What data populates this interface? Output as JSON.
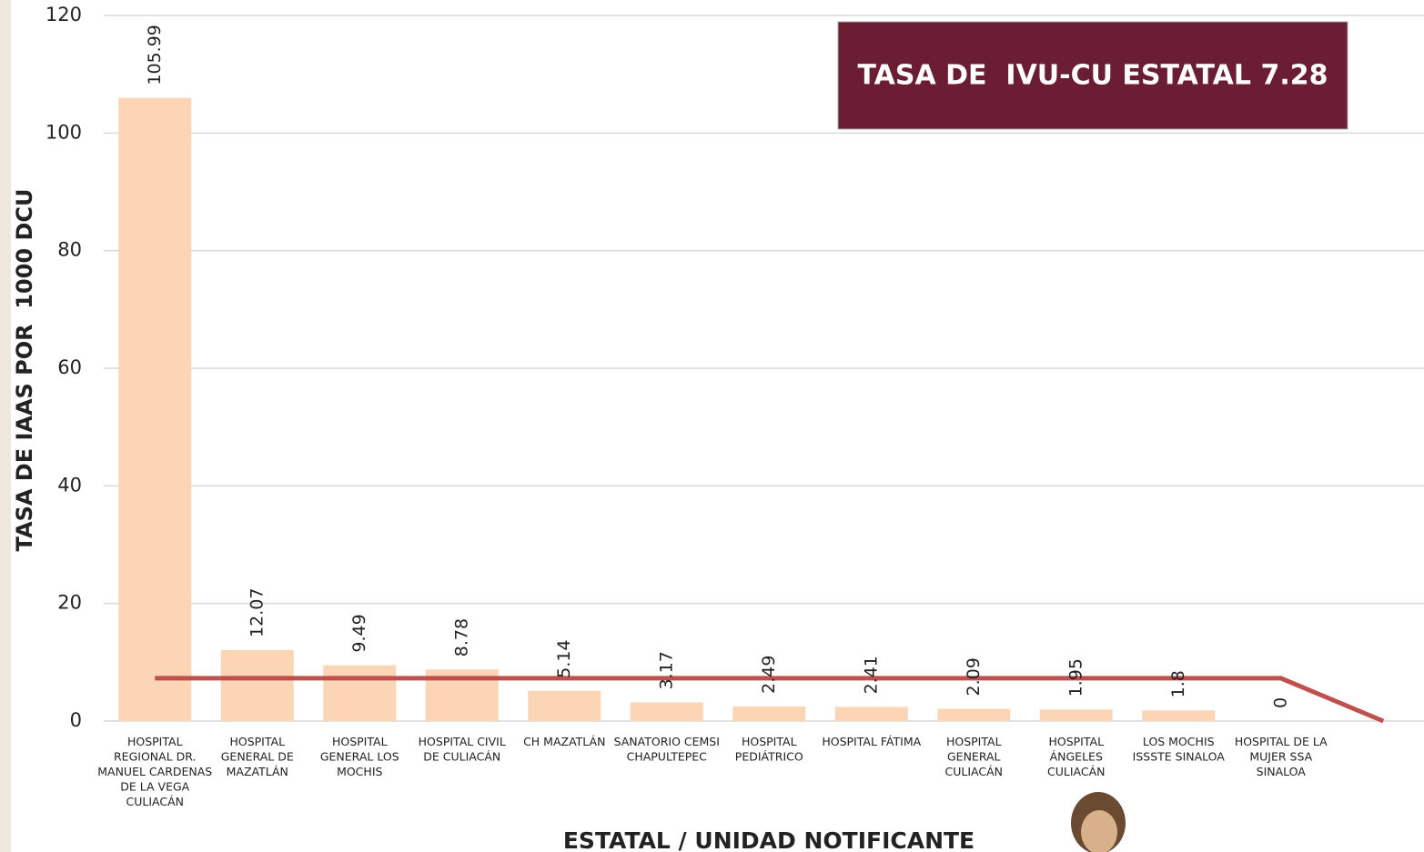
{
  "chart_data": {
    "type": "bar",
    "title": "TASA DE  IVU-CU ESTATAL 7.28",
    "x_label": "ESTATAL / UNIDAD NOTIFICANTE",
    "y_label": "TASA DE IAAS POR  1000 DCU",
    "categories": [
      "HOSPITAL REGIONAL DR. MANUEL CARDENAS DE LA VEGA CULIACÁN",
      "HOSPITAL GENERAL DE MAZATLÁN",
      "HOSPITAL GENERAL LOS MOCHIS",
      "HOSPITAL CIVIL DE CULIACÁN",
      "CH MAZATLÁN",
      "SANATORIO CEMSI CHAPULTEPEC",
      "HOSPITAL PEDIÁTRICO",
      "HOSPITAL FÁTIMA",
      "HOSPITAL GENERAL CULIACÁN",
      "HOSPITAL ÁNGELES CULIACÁN",
      "LOS MOCHIS ISSSTE SINALOA",
      "HOSPITAL DE LA MUJER SSA SINALOA",
      null
    ],
    "values": [
      105.99,
      12.07,
      9.49,
      8.78,
      5.14,
      3.17,
      2.49,
      2.41,
      2.09,
      1.95,
      1.8,
      0,
      null
    ],
    "color": "#fcd5b5",
    "line": {
      "values": [
        7.28,
        7.28,
        7.28,
        7.28,
        7.28,
        7.28,
        7.28,
        7.28,
        7.28,
        7.28,
        7.28,
        7.28,
        0
      ],
      "color": "#c0504d"
    },
    "ylim": [
      0,
      120
    ],
    "yticks": [
      0,
      20,
      40,
      60,
      80,
      100,
      120
    ],
    "grid": true
  }
}
